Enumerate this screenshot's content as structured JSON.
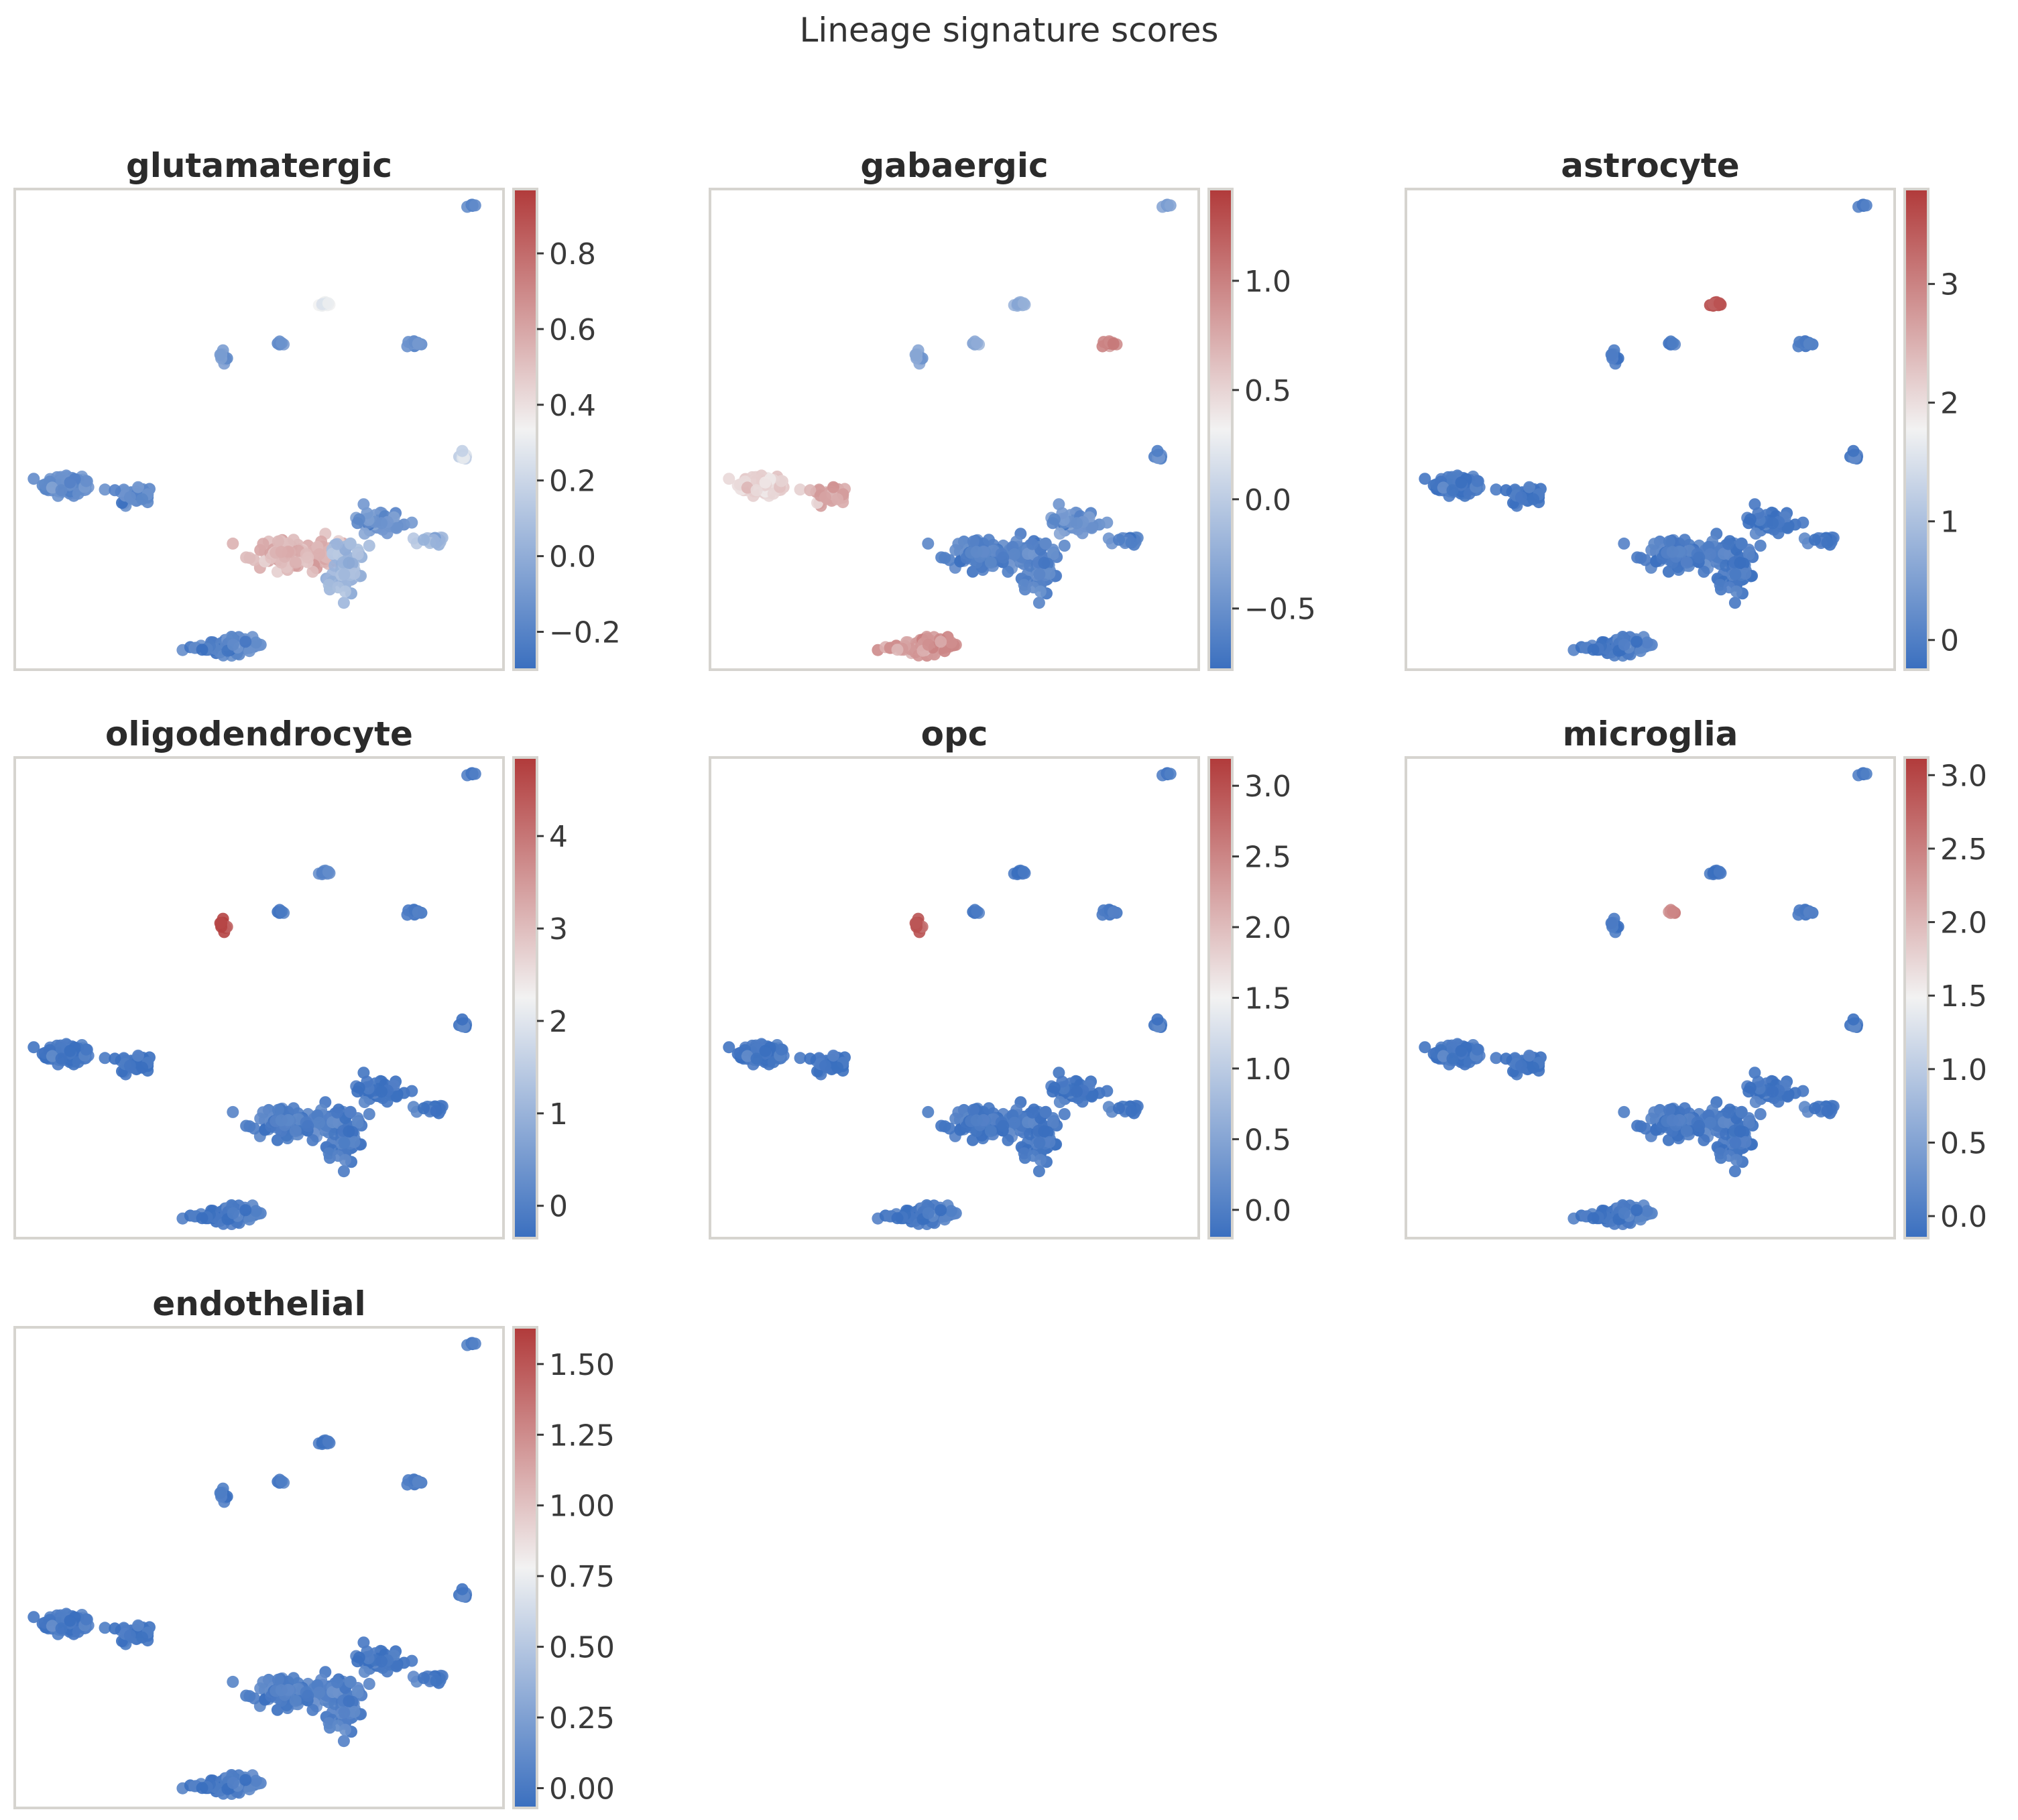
{
  "chart_data": {
    "type": "scatter",
    "title": "Lineage signature scores",
    "colormap": {
      "name": "vlag-like",
      "low": "#3a6fbf",
      "mid": "#f2f2f2",
      "high": "#b13a3a"
    },
    "colors": {
      "frame": "#d6d4cf",
      "text": "#333333"
    },
    "clusters": [
      {
        "id": "c1",
        "x": 1.5,
        "y": 8.0,
        "sx": 0.55,
        "sy": 0.35,
        "n": 90
      },
      {
        "id": "c2",
        "x": 2.9,
        "y": 7.7,
        "sx": 0.35,
        "sy": 0.3,
        "n": 45
      },
      {
        "id": "c3",
        "x": 4.8,
        "y": 3.1,
        "sx": 0.75,
        "sy": 0.25,
        "n": 70
      },
      {
        "id": "c4",
        "x": 6.2,
        "y": 5.9,
        "sx": 0.9,
        "sy": 0.45,
        "n": 120
      },
      {
        "id": "c5",
        "x": 7.2,
        "y": 5.6,
        "sx": 0.35,
        "sy": 0.85,
        "n": 70
      },
      {
        "id": "c6",
        "x": 7.95,
        "y": 6.9,
        "sx": 0.45,
        "sy": 0.35,
        "n": 45
      },
      {
        "id": "c7",
        "x": 9.0,
        "y": 6.3,
        "sx": 0.3,
        "sy": 0.15,
        "n": 25
      },
      {
        "id": "c8",
        "x": 6.8,
        "y": 13.5,
        "sx": 0.15,
        "sy": 0.12,
        "n": 12
      },
      {
        "id": "c9",
        "x": 4.7,
        "y": 11.9,
        "sx": 0.08,
        "sy": 0.25,
        "n": 10
      },
      {
        "id": "c10",
        "x": 5.9,
        "y": 12.3,
        "sx": 0.08,
        "sy": 0.08,
        "n": 6
      },
      {
        "id": "c11",
        "x": 8.7,
        "y": 12.3,
        "sx": 0.18,
        "sy": 0.08,
        "n": 12
      },
      {
        "id": "c12",
        "x": 9.7,
        "y": 8.9,
        "sx": 0.1,
        "sy": 0.12,
        "n": 10
      },
      {
        "id": "c13",
        "x": 9.85,
        "y": 16.5,
        "sx": 0.08,
        "sy": 0.07,
        "n": 6
      }
    ],
    "panels": [
      {
        "title": "glutamatergic",
        "vmin": -0.3,
        "vmax": 0.97,
        "ticks": [
          -0.2,
          0.0,
          0.2,
          0.4,
          0.6,
          0.8
        ],
        "tick_labels": [
          "−0.2",
          "0.0",
          "0.2",
          "0.4",
          "0.6",
          "0.8"
        ],
        "cluster_values": {
          "c1": -0.15,
          "c2": -0.15,
          "c3": -0.2,
          "c4": 0.55,
          "c5": 0.05,
          "c6": -0.1,
          "c7": 0.05,
          "c8": 0.3,
          "c9": -0.1,
          "c10": -0.15,
          "c11": -0.15,
          "c12": 0.2,
          "c13": -0.2
        }
      },
      {
        "title": "gabaergic",
        "vmin": -0.78,
        "vmax": 1.42,
        "ticks": [
          -0.5,
          0.0,
          0.5,
          1.0
        ],
        "tick_labels": [
          "−0.5",
          "0.0",
          "0.5",
          "1.0"
        ],
        "cluster_values": {
          "c1": 0.5,
          "c2": 0.8,
          "c3": 0.85,
          "c4": -0.6,
          "c5": -0.6,
          "c6": -0.45,
          "c7": -0.6,
          "c8": -0.25,
          "c9": -0.35,
          "c10": -0.3,
          "c11": 0.95,
          "c12": -0.6,
          "c13": -0.4
        }
      },
      {
        "title": "astrocyte",
        "vmin": -0.25,
        "vmax": 3.8,
        "ticks": [
          0,
          1,
          2,
          3
        ],
        "tick_labels": [
          "0",
          "1",
          "2",
          "3"
        ],
        "cluster_values": {
          "c1": -0.1,
          "c2": -0.1,
          "c3": -0.1,
          "c4": 0.0,
          "c5": -0.1,
          "c6": -0.1,
          "c7": -0.1,
          "c8": 3.5,
          "c9": -0.1,
          "c10": -0.1,
          "c11": -0.1,
          "c12": -0.1,
          "c13": -0.1
        }
      },
      {
        "title": "oligodendrocyte",
        "vmin": -0.35,
        "vmax": 4.85,
        "ticks": [
          0,
          1,
          2,
          3,
          4
        ],
        "tick_labels": [
          "0",
          "1",
          "2",
          "3",
          "4"
        ],
        "cluster_values": {
          "c1": -0.2,
          "c2": -0.2,
          "c3": -0.2,
          "c4": 0.0,
          "c5": -0.1,
          "c6": -0.2,
          "c7": -0.2,
          "c8": 0.2,
          "c9": 4.6,
          "c10": -0.2,
          "c11": -0.2,
          "c12": -0.2,
          "c13": -0.2
        }
      },
      {
        "title": "opc",
        "vmin": -0.2,
        "vmax": 3.2,
        "ticks": [
          0.0,
          0.5,
          1.0,
          1.5,
          2.0,
          2.5,
          3.0
        ],
        "tick_labels": [
          "0.0",
          "0.5",
          "1.0",
          "1.5",
          "2.0",
          "2.5",
          "3.0"
        ],
        "cluster_values": {
          "c1": -0.1,
          "c2": -0.1,
          "c3": -0.1,
          "c4": -0.05,
          "c5": -0.1,
          "c6": -0.1,
          "c7": -0.1,
          "c8": -0.1,
          "c9": 2.9,
          "c10": -0.1,
          "c11": -0.1,
          "c12": -0.1,
          "c13": -0.1
        }
      },
      {
        "title": "microglia",
        "vmin": -0.15,
        "vmax": 3.12,
        "ticks": [
          0.0,
          0.5,
          1.0,
          1.5,
          2.0,
          2.5,
          3.0
        ],
        "tick_labels": [
          "0.0",
          "0.5",
          "1.0",
          "1.5",
          "2.0",
          "2.5",
          "3.0"
        ],
        "cluster_values": {
          "c1": -0.05,
          "c2": -0.05,
          "c3": -0.05,
          "c4": 0.0,
          "c5": -0.05,
          "c6": -0.05,
          "c7": -0.05,
          "c8": -0.05,
          "c9": -0.05,
          "c10": 2.4,
          "c11": -0.05,
          "c12": -0.05,
          "c13": -0.05
        }
      },
      {
        "title": "endothelial",
        "vmin": -0.07,
        "vmax": 1.63,
        "ticks": [
          0.0,
          0.25,
          0.5,
          0.75,
          1.0,
          1.25,
          1.5
        ],
        "tick_labels": [
          "0.00",
          "0.25",
          "0.50",
          "0.75",
          "1.00",
          "1.25",
          "1.50"
        ],
        "cluster_values": {
          "c1": 0.0,
          "c2": 0.0,
          "c3": 0.0,
          "c4": 0.05,
          "c5": 0.05,
          "c6": 0.0,
          "c7": 0.0,
          "c8": 0.0,
          "c9": 0.0,
          "c10": 0.0,
          "c11": 0.0,
          "c12": 0.0,
          "c13": 0.0
        }
      }
    ]
  }
}
